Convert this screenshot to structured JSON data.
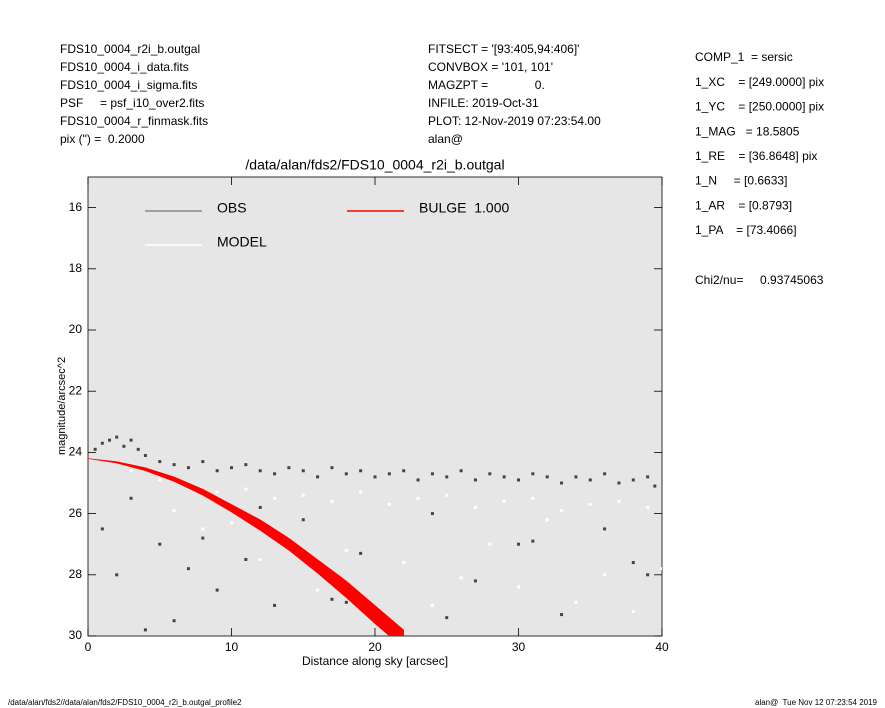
{
  "header_left": [
    "FDS10_0004_r2i_b.outgal",
    "FDS10_0004_i_data.fits",
    "FDS10_0004_i_sigma.fits",
    "PSF     = psf_i10_over2.fits",
    "FDS10_0004_r_finmask.fits",
    "pix (\") =  0.2000"
  ],
  "header_mid": [
    "FITSECT = '[93:405,94:406]'",
    "CONVBOX = '101, 101'",
    "MAGZPT =              0.",
    "INFILE: 2019-Oct-31",
    "PLOT: 12-Nov-2019 07:23:54.00",
    "alan@"
  ],
  "params": [
    "COMP_1  = sersic",
    "1_XC    = [249.0000] pix",
    "1_YC    = [250.0000] pix",
    "1_MAG   = 18.5805",
    "1_RE    = [36.8648] pix",
    "1_N     = [0.6633]",
    "1_AR    = [0.8793]",
    "1_PA    = [73.4066]"
  ],
  "chi2": "Chi2/nu=     0.93745063",
  "footer_left": "/data/alan/fds2//data/alan/fds2/FDS10_0004_r2i_b.outgal_profile2",
  "footer_right": "alan@  Tue Nov 12 07:23:54 2019",
  "chart_data": {
    "type": "scatter",
    "title": "/data/alan/fds2/FDS10_0004_r2i_b.outgal",
    "x_label": "Distance along sky [arcsec]",
    "y_label": "magnitude/arcsec^2",
    "xlim": [
      0,
      40
    ],
    "xticks": [
      0,
      10,
      20,
      30,
      40
    ],
    "ylim": [
      15,
      30
    ],
    "yticks": [
      16,
      18,
      20,
      22,
      24,
      26,
      28,
      30
    ],
    "y_inverted": true,
    "background": "#e6e6e6",
    "series": [
      {
        "name": "OBS",
        "color": "#444444",
        "legend_color": "#888888",
        "x": [
          0.5,
          1,
          1.5,
          2,
          2.5,
          3,
          3.5,
          4,
          5,
          6,
          7,
          8,
          9,
          10,
          11,
          12,
          13,
          14,
          15,
          16,
          17,
          18,
          19,
          20,
          21,
          22,
          23,
          24,
          25,
          26,
          27,
          28,
          29,
          30,
          31,
          32,
          33,
          34,
          35,
          36,
          37,
          38,
          39,
          39.5,
          1,
          2,
          3,
          5,
          6,
          8,
          9,
          11,
          13,
          15,
          17,
          19,
          21,
          24,
          27,
          30,
          33,
          36,
          39,
          4,
          7,
          12,
          18,
          25,
          31,
          38
        ],
        "values": [
          23.9,
          23.7,
          23.6,
          23.5,
          23.8,
          23.6,
          23.9,
          24.1,
          24.3,
          24.4,
          24.5,
          24.3,
          24.6,
          24.5,
          24.4,
          24.6,
          24.7,
          24.5,
          24.6,
          24.8,
          24.5,
          24.7,
          24.6,
          24.8,
          24.7,
          24.6,
          24.9,
          24.7,
          24.8,
          24.6,
          24.9,
          24.7,
          24.8,
          24.9,
          24.7,
          24.8,
          25.0,
          24.8,
          24.9,
          24.7,
          25.0,
          24.9,
          24.8,
          25.1,
          26.5,
          28.0,
          25.5,
          27.0,
          29.5,
          26.8,
          28.5,
          27.5,
          29.0,
          26.2,
          28.8,
          27.3,
          29.6,
          26.0,
          28.2,
          27.0,
          29.3,
          26.5,
          28.0,
          29.8,
          27.8,
          25.8,
          28.9,
          29.4,
          26.9,
          27.6
        ]
      },
      {
        "name": "MODEL",
        "color": "#ffffff",
        "legend_color": "#ffffff",
        "x": [
          3,
          5,
          7,
          9,
          11,
          13,
          15,
          17,
          19,
          21,
          23,
          25,
          27,
          29,
          31,
          33,
          35,
          37,
          39,
          6,
          10,
          14,
          18,
          22,
          26,
          30,
          34,
          38,
          8,
          12,
          16,
          20,
          24,
          28,
          32,
          36,
          40
        ],
        "values": [
          24.6,
          24.9,
          25.1,
          25.3,
          25.2,
          25.5,
          25.4,
          25.6,
          25.3,
          25.7,
          25.5,
          25.4,
          25.8,
          25.6,
          25.5,
          25.9,
          25.7,
          25.6,
          25.8,
          25.9,
          26.3,
          26.8,
          27.2,
          27.6,
          28.1,
          28.4,
          28.9,
          29.2,
          26.5,
          27.5,
          28.5,
          29.5,
          29.0,
          27.0,
          26.2,
          28.0,
          27.8
        ]
      },
      {
        "name": "BULGE  1.000",
        "color": "#ff0000",
        "legend_color": "#ff0000",
        "band": true,
        "x": [
          0,
          2,
          4,
          6,
          8,
          10,
          12,
          14,
          16,
          18,
          20,
          22
        ],
        "values": [
          24.2,
          24.3,
          24.5,
          24.8,
          25.2,
          25.7,
          26.2,
          26.8,
          27.5,
          28.2,
          29.0,
          29.8
        ],
        "values_faint": [
          24.2,
          24.35,
          24.6,
          24.95,
          25.4,
          25.95,
          26.55,
          27.2,
          27.95,
          28.75,
          29.6,
          30.4
        ]
      }
    ]
  }
}
